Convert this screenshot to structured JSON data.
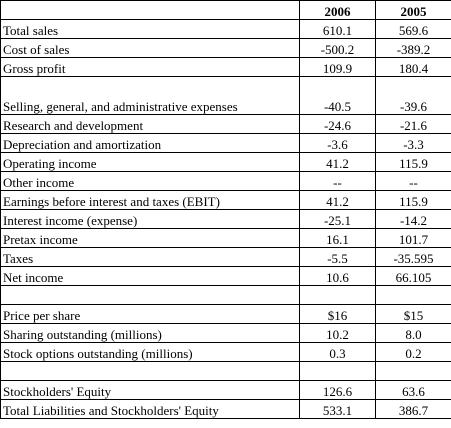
{
  "table": {
    "columns": [
      "",
      "2006",
      "2005"
    ],
    "rows": [
      {
        "label": "Total sales",
        "v2006": "610.1",
        "v2005": "569.6"
      },
      {
        "label": "Cost of sales",
        "v2006": "-500.2",
        "v2005": "-389.2"
      },
      {
        "label": "Gross profit",
        "v2006": "109.9",
        "v2005": "180.4"
      },
      {
        "label": "Selling, general, and administrative expenses",
        "v2006": "-40.5",
        "v2005": "-39.6"
      },
      {
        "label": "Research and development",
        "v2006": "-24.6",
        "v2005": "-21.6"
      },
      {
        "label": "Depreciation and amortization",
        "v2006": "-3.6",
        "v2005": "-3.3"
      },
      {
        "label": "Operating income",
        "v2006": "41.2",
        "v2005": "115.9"
      },
      {
        "label": "Other income",
        "v2006": "--",
        "v2005": "--"
      },
      {
        "label": "Earnings before interest and taxes (EBIT)",
        "v2006": "41.2",
        "v2005": "115.9"
      },
      {
        "label": "Interest income (expense)",
        "v2006": "-25.1",
        "v2005": "-14.2"
      },
      {
        "label": "Pretax income",
        "v2006": "16.1",
        "v2005": "101.7"
      },
      {
        "label": "Taxes",
        "v2006": "-5.5",
        "v2005": "-35.595"
      },
      {
        "label": "Net income",
        "v2006": "10.6",
        "v2005": "66.105"
      },
      {
        "label": "",
        "v2006": "",
        "v2005": ""
      },
      {
        "label": "Price per share",
        "v2006": "$16",
        "v2005": "$15"
      },
      {
        "label": "Sharing outstanding (millions)",
        "v2006": "10.2",
        "v2005": "8.0"
      },
      {
        "label": "Stock options outstanding (millions)",
        "v2006": "0.3",
        "v2005": "0.2"
      },
      {
        "label": "",
        "v2006": "",
        "v2005": ""
      },
      {
        "label": "Stockholders' Equity",
        "v2006": "126.6",
        "v2005": "63.6"
      },
      {
        "label": "Total Liabilities and Stockholders' Equity",
        "v2006": "533.1",
        "v2005": "386.7"
      }
    ]
  }
}
